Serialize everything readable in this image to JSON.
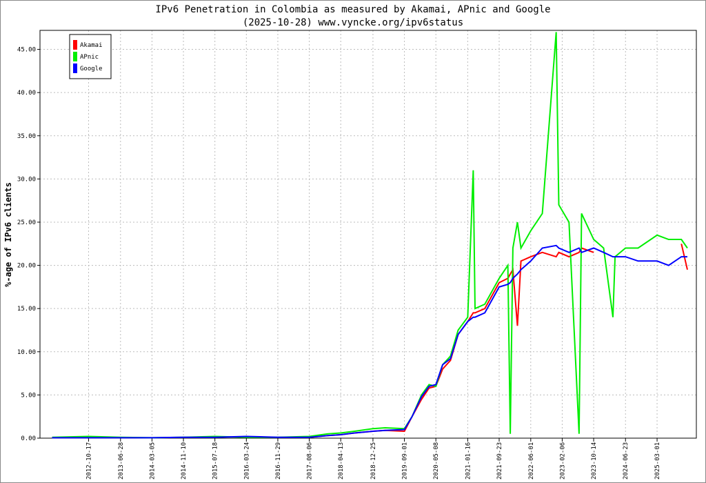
{
  "chart_data": {
    "type": "line",
    "title": "IPv6 Penetration in Colombia as measured by Akamai, APnic and Google",
    "subtitle": "(2025-10-28) www.vyncke.org/ipv6status",
    "y_label": "%-age of IPv6 clients",
    "x": [
      "2012-01-01",
      "2012-10-17",
      "2013-06-28",
      "2014-03-05",
      "2014-11-10",
      "2015-07-18",
      "2016-03-24",
      "2016-11-29",
      "2017-08-06",
      "2018-01-01",
      "2018-04-13",
      "2018-08-01",
      "2018-12-25",
      "2019-04-01",
      "2019-09-01",
      "2019-11-01",
      "2020-01-15",
      "2020-03-15",
      "2020-05-08",
      "2020-07-01",
      "2020-09-01",
      "2020-11-01",
      "2021-01-16",
      "2021-03-01",
      "2021-03-15",
      "2021-06-01",
      "2021-09-23",
      "2021-12-01",
      "2021-12-20",
      "2022-01-10",
      "2022-02-15",
      "2022-03-15",
      "2022-06-01",
      "2022-09-01",
      "2022-12-20",
      "2023-01-10",
      "2023-04-01",
      "2023-06-20",
      "2023-07-10",
      "2023-10-14",
      "2024-01-01",
      "2024-03-15",
      "2024-04-01",
      "2024-06-23",
      "2024-10-01",
      "2025-03-01",
      "2025-06-01",
      "2025-09-10",
      "2025-10-28"
    ],
    "series": [
      {
        "name": "Akamai",
        "color": "#ff0000",
        "values": [
          null,
          null,
          null,
          null,
          null,
          null,
          null,
          null,
          0.1,
          0.3,
          0.4,
          0.6,
          0.8,
          0.9,
          0.8,
          2.5,
          4.5,
          5.8,
          6.0,
          8.0,
          9.0,
          12.0,
          13.5,
          14.5,
          14.5,
          15.0,
          18.0,
          18.5,
          19.0,
          19.5,
          13.0,
          20.5,
          21.0,
          21.5,
          21.0,
          21.5,
          21.0,
          21.5,
          22.0,
          21.5,
          null,
          null,
          null,
          null,
          null,
          null,
          null,
          22.5,
          19.5
        ]
      },
      {
        "name": "APnic",
        "color": "#00ee00",
        "values": [
          0.1,
          0.2,
          0.1,
          0.05,
          0.1,
          0.2,
          0.1,
          0.1,
          0.2,
          0.5,
          0.6,
          0.8,
          1.1,
          1.2,
          1.1,
          2.5,
          5.0,
          6.2,
          6.0,
          8.5,
          9.5,
          12.5,
          14.0,
          31.0,
          15.0,
          15.5,
          18.5,
          20,
          0.5,
          22,
          25,
          22,
          24,
          26,
          47,
          27,
          25,
          0.5,
          26,
          23,
          22,
          14,
          21,
          22,
          22,
          23.5,
          23,
          23,
          22
        ]
      },
      {
        "name": "Google",
        "color": "#0000ff",
        "values": [
          0.05,
          0.05,
          0.05,
          0.05,
          0.1,
          0.1,
          0.2,
          0.1,
          0.1,
          0.3,
          0.4,
          0.6,
          0.8,
          0.9,
          1.0,
          2.5,
          4.8,
          6.0,
          6.2,
          8.5,
          9.2,
          12.0,
          13.5,
          14.0,
          14.0,
          14.5,
          17.5,
          17.8,
          18,
          18.5,
          19.0,
          19.5,
          20.5,
          22.0,
          22.3,
          22.0,
          21.5,
          22,
          21.5,
          22.0,
          21.5,
          21.0,
          21.0,
          21.0,
          20.5,
          20.5,
          20.0,
          21,
          21
        ]
      }
    ],
    "xlim": [
      "2011-09-27",
      "2026-01-07"
    ],
    "xticks": [
      "2012-10-17",
      "2013-06-28",
      "2014-03-05",
      "2014-11-10",
      "2015-07-18",
      "2016-03-24",
      "2016-11-29",
      "2017-08-06",
      "2018-04-13",
      "2018-12-25",
      "2019-09-01",
      "2020-05-08",
      "2021-01-16",
      "2021-09-23",
      "2022-06-01",
      "2023-02-06",
      "2023-10-14",
      "2024-06-23",
      "2025-03-01"
    ],
    "ylim": [
      0,
      47.2
    ],
    "yticks": [
      {
        "value": 0,
        "label": "0.00"
      },
      {
        "value": 5,
        "label": "5.00"
      },
      {
        "value": 10,
        "label": "10.00"
      },
      {
        "value": 15,
        "label": "15.00"
      },
      {
        "value": 20,
        "label": "20.00"
      },
      {
        "value": 25,
        "label": "25.00"
      },
      {
        "value": 30,
        "label": "30.00"
      },
      {
        "value": 35,
        "label": "35.00"
      },
      {
        "value": 40,
        "label": "40.00"
      },
      {
        "value": 45,
        "label": "45.00"
      }
    ],
    "grid": true,
    "legend": "upper left"
  }
}
